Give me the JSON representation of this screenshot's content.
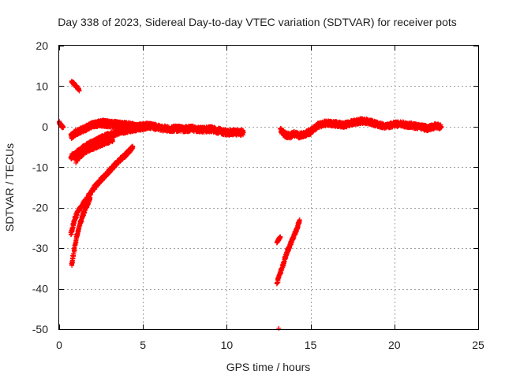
{
  "chart_data": {
    "type": "scatter",
    "title": "Day 338 of 2023, Sidereal Day-to-day VTEC variation (SDTVAR) for receiver pots",
    "xlabel": "GPS time / hours",
    "ylabel": "SDTVAR / TECUs",
    "xlim": [
      0,
      25
    ],
    "ylim": [
      -50,
      20
    ],
    "xticks": [
      0,
      5,
      10,
      15,
      20,
      25
    ],
    "yticks": [
      -50,
      -40,
      -30,
      -20,
      -10,
      0,
      10,
      20
    ],
    "grid": true,
    "marker": "+",
    "series": [
      {
        "name": "SDTVAR",
        "color": "#ff0000",
        "segments": [
          {
            "kind": "band",
            "x": [
              0.0,
              0.05,
              0.15,
              0.25
            ],
            "y": [
              1.0,
              0.6,
              0.2,
              -0.2
            ],
            "spread": 0.7
          },
          {
            "kind": "band",
            "x": [
              0.75,
              0.9,
              1.05,
              1.2
            ],
            "y": [
              11.0,
              10.5,
              9.8,
              9.0
            ],
            "spread": 0.6
          },
          {
            "kind": "band",
            "x": [
              0.7,
              1.0,
              1.5,
              2.0,
              2.5,
              3.0,
              3.5,
              4.0,
              4.5,
              5.0,
              5.5,
              6.0,
              6.5,
              7.0,
              7.5,
              8.0,
              8.5,
              9.0,
              9.5,
              10.0,
              10.5,
              11.0
            ],
            "y": [
              -2.5,
              -1.5,
              -0.5,
              0.5,
              0.8,
              0.5,
              0.3,
              0.2,
              0.0,
              0.2,
              0.2,
              -0.3,
              -0.6,
              -0.5,
              -0.6,
              -0.5,
              -0.8,
              -0.6,
              -1.0,
              -1.5,
              -1.4,
              -1.5
            ],
            "spread": 1.4
          },
          {
            "kind": "band",
            "x": [
              1.5,
              2.0,
              2.5,
              3.0,
              3.5,
              4.0,
              4.5
            ],
            "y": [
              -0.5,
              0.5,
              1.2,
              1.0,
              0.8,
              0.6,
              0.4
            ],
            "spread": 1.0
          },
          {
            "kind": "band",
            "x": [
              0.7,
              1.2,
              1.7,
              2.2,
              2.7,
              3.2,
              3.7,
              4.2,
              4.7,
              5.2
            ],
            "y": [
              -7.5,
              -6.0,
              -4.5,
              -3.5,
              -2.5,
              -1.8,
              -1.2,
              -0.8,
              -0.4,
              -0.1
            ],
            "spread": 1.2
          },
          {
            "kind": "band",
            "x": [
              1.0,
              1.3,
              1.6,
              2.0,
              2.4,
              2.8,
              3.2
            ],
            "y": [
              -8.5,
              -7.0,
              -6.0,
              -5.2,
              -4.5,
              -3.8,
              -3.2
            ],
            "spread": 1.0
          },
          {
            "kind": "band",
            "x": [
              0.7,
              0.85,
              1.0,
              1.2,
              1.45,
              1.7,
              2.0,
              2.4,
              2.8,
              3.2,
              3.6,
              4.0,
              4.4
            ],
            "y": [
              -26.5,
              -24.0,
              -22.0,
              -20.5,
              -19.0,
              -17.5,
              -15.5,
              -13.5,
              -11.8,
              -10.0,
              -8.3,
              -6.8,
              -5.0
            ],
            "spread": 1.0
          },
          {
            "kind": "band",
            "x": [
              0.75,
              0.9,
              1.05,
              1.25,
              1.45,
              1.65,
              1.85
            ],
            "y": [
              -34.0,
              -30.5,
              -27.0,
              -24.0,
              -21.5,
              -19.5,
              -17.5
            ],
            "spread": 0.9
          },
          {
            "kind": "band",
            "x": [
              13.2,
              13.5,
              13.8,
              14.0,
              14.3,
              14.6,
              15.0,
              15.4,
              15.8,
              16.2,
              16.6,
              17.0,
              17.5,
              18.0,
              18.5,
              19.0,
              19.5,
              20.0,
              20.5,
              21.0,
              21.5,
              22.0,
              22.5,
              22.8
            ],
            "y": [
              -0.8,
              -2.0,
              -2.3,
              -1.8,
              -2.2,
              -2.0,
              -1.2,
              0.2,
              0.8,
              0.8,
              0.6,
              0.4,
              1.0,
              1.4,
              1.2,
              0.6,
              0.0,
              0.6,
              0.6,
              0.3,
              0.0,
              -0.4,
              0.2,
              0.0
            ],
            "spread": 1.3
          },
          {
            "kind": "band",
            "x": [
              13.0,
              13.2,
              13.4,
              13.6,
              13.8,
              14.0,
              14.2,
              14.35
            ],
            "y": [
              -38.5,
              -36.0,
              -33.5,
              -31.0,
              -29.0,
              -27.0,
              -25.0,
              -23.0
            ],
            "spread": 0.8
          },
          {
            "kind": "band",
            "x": [
              13.0,
              13.1,
              13.2
            ],
            "y": [
              -28.5,
              -27.8,
              -27.3
            ],
            "spread": 0.6
          },
          {
            "kind": "points",
            "x": [
              13.1
            ],
            "y": [
              -49.8
            ]
          }
        ]
      }
    ]
  }
}
